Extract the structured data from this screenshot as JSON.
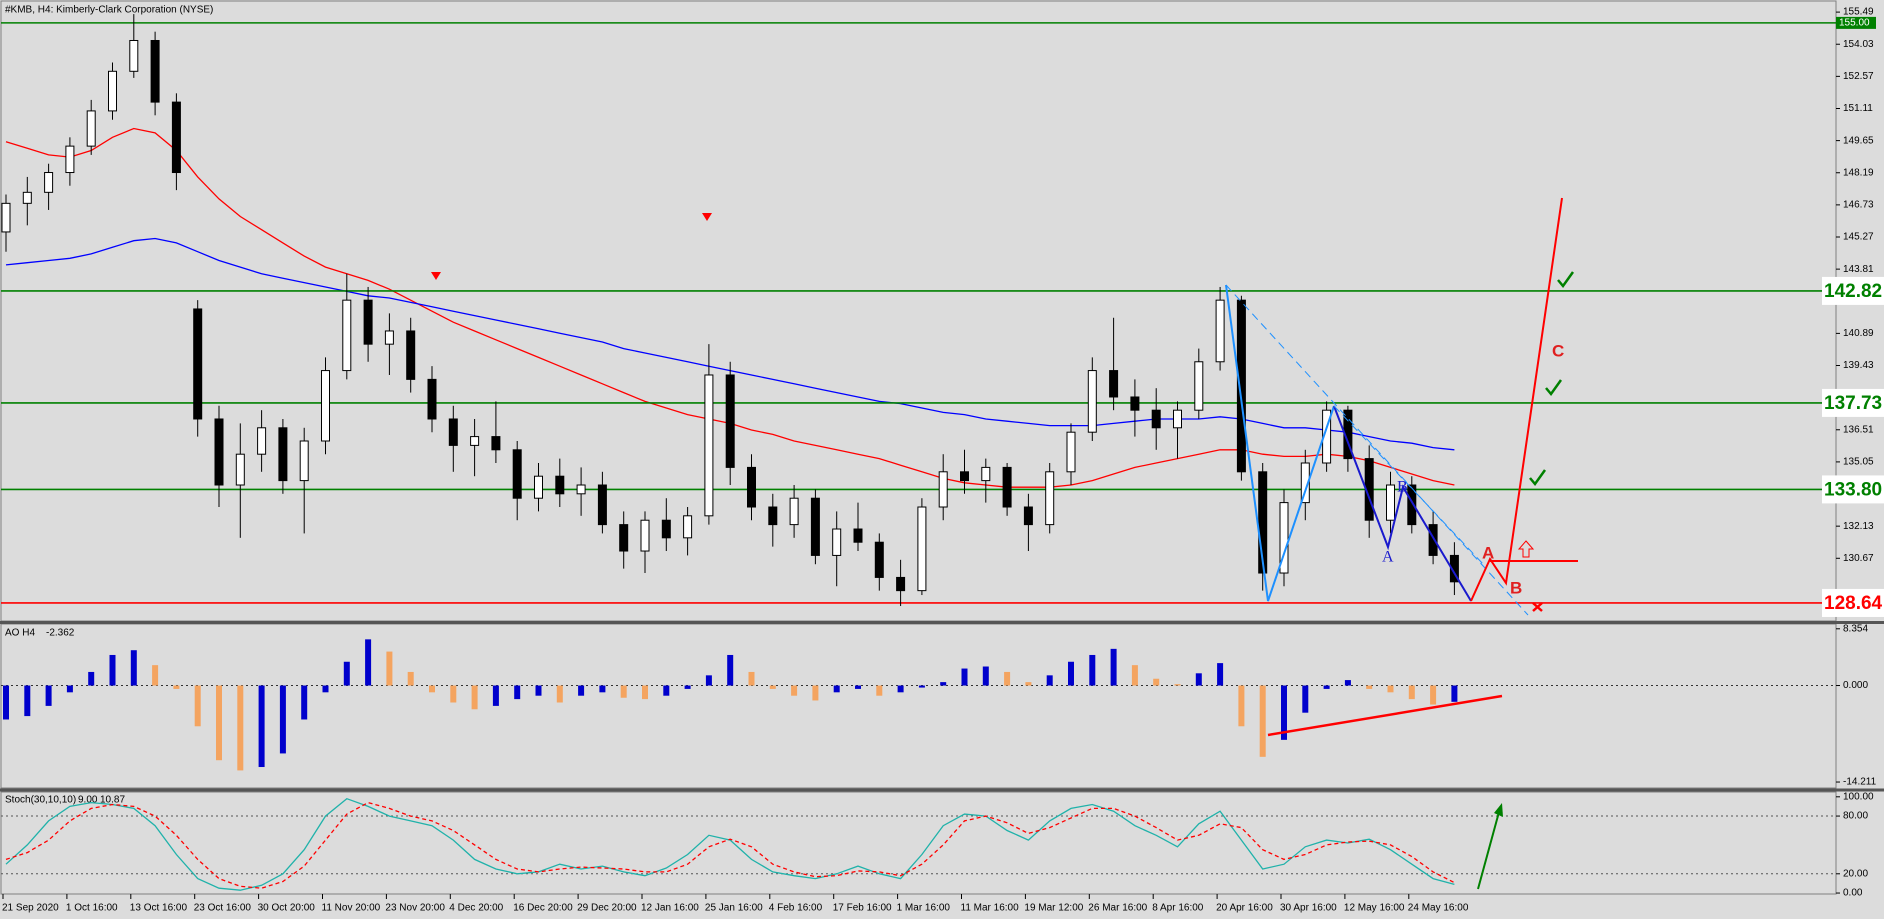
{
  "chart_data": {
    "type": "candlestick",
    "title": "#KMB, H4:  Kimberly-Clark Corporation (NYSE)",
    "ylim": [
      127.82,
      156.04
    ],
    "yticks": [
      155.49,
      154.03,
      152.57,
      151.11,
      149.65,
      148.19,
      146.73,
      145.27,
      143.81,
      140.89,
      139.43,
      136.51,
      135.05,
      132.13,
      130.67
    ],
    "x_labels": [
      "21 Sep 2020",
      "1 Oct 16:00",
      "13 Oct 16:00",
      "23 Oct 16:00",
      "30 Oct 20:00",
      "11 Nov 20:00",
      "23 Nov 20:00",
      "4 Dec 20:00",
      "16 Dec 20:00",
      "29 Dec 20:00",
      "12 Jan 16:00",
      "25 Jan 16:00",
      "4 Feb 16:00",
      "17 Feb 16:00",
      "1 Mar 16:00",
      "11 Mar 16:00",
      "19 Mar 12:00",
      "26 Mar 16:00",
      "8 Apr 16:00",
      "20 Apr 16:00",
      "30 Apr 16:00",
      "12 May 16:00",
      "24 May 16:00"
    ],
    "candles": [
      [
        145.5,
        147.2,
        144.6,
        146.8
      ],
      [
        146.8,
        148.0,
        145.8,
        147.3
      ],
      [
        147.3,
        148.6,
        146.5,
        148.2
      ],
      [
        148.2,
        149.8,
        147.6,
        149.4
      ],
      [
        149.4,
        151.5,
        149.0,
        151.0
      ],
      [
        151.0,
        153.2,
        150.6,
        152.8
      ],
      [
        152.8,
        155.4,
        152.5,
        154.2
      ],
      [
        154.2,
        154.6,
        150.8,
        151.4
      ],
      [
        151.4,
        151.8,
        147.4,
        148.2
      ],
      [
        142.0,
        142.4,
        136.2,
        137.0
      ],
      [
        137.0,
        137.6,
        133.0,
        134.0
      ],
      [
        134.0,
        136.8,
        131.6,
        135.4
      ],
      [
        135.4,
        137.4,
        134.6,
        136.6
      ],
      [
        136.6,
        137.0,
        133.6,
        134.2
      ],
      [
        134.2,
        136.6,
        131.8,
        136.0
      ],
      [
        136.0,
        139.8,
        135.4,
        139.2
      ],
      [
        139.2,
        143.6,
        138.8,
        142.4
      ],
      [
        142.4,
        143.0,
        139.6,
        140.4
      ],
      [
        140.4,
        141.8,
        139.0,
        141.0
      ],
      [
        141.0,
        141.6,
        138.2,
        138.8
      ],
      [
        138.8,
        139.4,
        136.4,
        137.0
      ],
      [
        137.0,
        137.6,
        134.6,
        135.8
      ],
      [
        135.8,
        137.0,
        134.4,
        136.2
      ],
      [
        136.2,
        137.8,
        135.0,
        135.6
      ],
      [
        135.6,
        136.0,
        132.4,
        133.4
      ],
      [
        133.4,
        135.0,
        132.8,
        134.4
      ],
      [
        134.4,
        135.2,
        133.0,
        133.6
      ],
      [
        133.6,
        134.8,
        132.6,
        134.0
      ],
      [
        134.0,
        134.6,
        131.8,
        132.2
      ],
      [
        132.2,
        132.8,
        130.2,
        131.0
      ],
      [
        131.0,
        132.8,
        130.0,
        132.4
      ],
      [
        132.4,
        133.4,
        131.0,
        131.6
      ],
      [
        131.6,
        133.0,
        130.8,
        132.6
      ],
      [
        132.6,
        140.4,
        132.2,
        139.0
      ],
      [
        139.0,
        139.6,
        134.0,
        134.8
      ],
      [
        134.8,
        135.4,
        132.4,
        133.0
      ],
      [
        133.0,
        133.6,
        131.2,
        132.2
      ],
      [
        132.2,
        134.0,
        131.6,
        133.4
      ],
      [
        133.4,
        133.8,
        130.4,
        130.8
      ],
      [
        130.8,
        132.8,
        129.4,
        132.0
      ],
      [
        132.0,
        133.2,
        131.0,
        131.4
      ],
      [
        131.4,
        131.8,
        129.2,
        129.8
      ],
      [
        129.8,
        130.6,
        128.5,
        129.2
      ],
      [
        129.2,
        133.4,
        129.0,
        133.0
      ],
      [
        133.0,
        135.4,
        132.4,
        134.6
      ],
      [
        134.6,
        135.6,
        133.6,
        134.2
      ],
      [
        134.2,
        135.2,
        133.2,
        134.8
      ],
      [
        134.8,
        135.0,
        132.6,
        133.0
      ],
      [
        133.0,
        133.6,
        131.0,
        132.2
      ],
      [
        132.2,
        135.0,
        131.8,
        134.6
      ],
      [
        134.6,
        136.8,
        134.0,
        136.4
      ],
      [
        136.4,
        139.8,
        136.0,
        139.2
      ],
      [
        139.2,
        141.6,
        137.4,
        138.0
      ],
      [
        138.0,
        138.8,
        136.2,
        137.4
      ],
      [
        137.4,
        138.4,
        135.6,
        136.6
      ],
      [
        136.6,
        137.8,
        135.2,
        137.4
      ],
      [
        137.4,
        140.2,
        137.0,
        139.6
      ],
      [
        139.6,
        143.0,
        139.2,
        142.4
      ],
      [
        142.4,
        142.6,
        134.2,
        134.6
      ],
      [
        134.6,
        135.0,
        129.2,
        130.0
      ],
      [
        130.0,
        133.8,
        129.4,
        133.2
      ],
      [
        133.2,
        135.6,
        132.4,
        135.0
      ],
      [
        135.0,
        137.8,
        134.6,
        137.4
      ],
      [
        137.4,
        137.6,
        134.6,
        135.2
      ],
      [
        135.2,
        135.8,
        131.6,
        132.4
      ],
      [
        132.4,
        134.6,
        131.8,
        134.0
      ],
      [
        134.0,
        134.4,
        131.8,
        132.2
      ],
      [
        132.2,
        132.8,
        130.4,
        130.8
      ],
      [
        130.8,
        131.4,
        129.0,
        129.6
      ]
    ],
    "candle_up_color": "#ffffff",
    "candle_down_color": "#000000",
    "series": [
      {
        "color": "#ff0000",
        "values": [
          149.6,
          149.3,
          149.0,
          148.9,
          149.2,
          149.8,
          150.2,
          150.0,
          149.2,
          148.0,
          147.0,
          146.2,
          145.6,
          145.0,
          144.4,
          143.9,
          143.6,
          143.3,
          142.9,
          142.4,
          141.9,
          141.4,
          141.0,
          140.6,
          140.2,
          139.8,
          139.4,
          139.0,
          138.6,
          138.2,
          137.8,
          137.5,
          137.2,
          137.0,
          136.8,
          136.5,
          136.3,
          136.0,
          135.8,
          135.6,
          135.4,
          135.2,
          134.9,
          134.6,
          134.3,
          134.1,
          134.0,
          133.9,
          133.9,
          133.9,
          134.0,
          134.2,
          134.5,
          134.8,
          135.0,
          135.2,
          135.4,
          135.6,
          135.6,
          135.4,
          135.3,
          135.3,
          135.4,
          135.3,
          135.1,
          134.8,
          134.5,
          134.2,
          134.0
        ]
      },
      {
        "color": "#0000ff",
        "values": [
          144.0,
          144.1,
          144.2,
          144.3,
          144.5,
          144.8,
          145.1,
          145.2,
          145.0,
          144.6,
          144.2,
          143.9,
          143.6,
          143.4,
          143.2,
          143.0,
          142.8,
          142.6,
          142.5,
          142.3,
          142.1,
          141.9,
          141.7,
          141.5,
          141.3,
          141.1,
          140.9,
          140.7,
          140.5,
          140.2,
          140.0,
          139.8,
          139.6,
          139.4,
          139.2,
          139.0,
          138.8,
          138.6,
          138.4,
          138.2,
          138.0,
          137.8,
          137.7,
          137.5,
          137.3,
          137.2,
          137.0,
          136.9,
          136.8,
          136.7,
          136.7,
          136.7,
          136.8,
          136.9,
          137.0,
          137.0,
          137.0,
          137.1,
          137.0,
          136.8,
          136.6,
          136.6,
          136.5,
          136.4,
          136.2,
          136.0,
          135.9,
          135.7,
          135.6
        ]
      }
    ],
    "levels": [
      {
        "value": 155,
        "label": "155.00",
        "color": "#008000",
        "label_style": "small"
      },
      {
        "value": 142.82,
        "color": "#008000",
        "label_style": "large"
      },
      {
        "value": 137.73,
        "color": "#008000",
        "label_style": "large"
      },
      {
        "value": 133.8,
        "label": "133.80",
        "color": "#008000",
        "label_style": "large"
      },
      {
        "value": 128.64,
        "color": "#ff0000",
        "label_style": "large"
      }
    ],
    "annotations": {
      "wave_red": [
        "A",
        "B",
        "C"
      ],
      "wave_blue": [
        "A",
        "B"
      ]
    },
    "ao": {
      "label": "AO H4",
      "current": -2.362,
      "ylim": [
        -15.09,
        9.06
      ],
      "yticks": [
        8.354,
        {
          "value": 0,
          "label": "0.000"
        },
        -14.211
      ],
      "up_color": "#0000cc",
      "down_color": "#f4a460",
      "values": [
        -5,
        -4.5,
        -3,
        -1,
        2,
        4.5,
        5.2,
        3,
        -0.5,
        -6,
        -11,
        -12.5,
        -12,
        -10,
        -5,
        -1,
        3.5,
        6.8,
        5,
        2,
        -1,
        -2.5,
        -3.5,
        -3,
        -2,
        -1.5,
        -2.5,
        -1.5,
        -1,
        -1.8,
        -2,
        -1.5,
        -0.5,
        1.5,
        4.5,
        2,
        -0.5,
        -1.5,
        -2.2,
        -1,
        -0.5,
        -1.5,
        -1,
        -0.3,
        0.5,
        2.5,
        2.8,
        2,
        0.5,
        1.5,
        3.5,
        4.5,
        5.4,
        3,
        1,
        0.2,
        1.8,
        3.3,
        -6,
        -10.5,
        -8,
        -4,
        -0.5,
        0.8,
        -0.5,
        -1,
        -2,
        -2.8,
        -2.4
      ]
    },
    "stoch": {
      "label": "Stoch(30,10,10)",
      "readout": [
        {
          "value": 9,
          "label": "9.00"
        },
        10.87
      ],
      "ylim": [
        -1,
        105
      ],
      "yticks": [
        {
          "value": 100,
          "label": "100.00"
        },
        {
          "value": 80,
          "label": "80.00"
        },
        {
          "value": 20,
          "label": "20.00"
        },
        {
          "value": 0,
          "label": "0.00"
        }
      ],
      "k_color": "#20b2aa",
      "d_color": "#ff0000",
      "k": [
        30,
        50,
        75,
        90,
        94,
        92,
        88,
        70,
        40,
        15,
        5,
        3,
        8,
        20,
        45,
        80,
        98,
        90,
        80,
        75,
        70,
        55,
        35,
        25,
        20,
        22,
        30,
        25,
        28,
        22,
        18,
        26,
        40,
        60,
        55,
        35,
        22,
        18,
        15,
        20,
        28,
        20,
        15,
        40,
        70,
        82,
        80,
        65,
        55,
        75,
        88,
        92,
        85,
        70,
        60,
        48,
        72,
        85,
        55,
        25,
        30,
        48,
        55,
        52,
        56,
        45,
        30,
        15,
        9
      ],
      "d": [
        35,
        42,
        55,
        75,
        88,
        92,
        90,
        80,
        60,
        35,
        15,
        7,
        5,
        12,
        28,
        55,
        82,
        94,
        88,
        80,
        75,
        65,
        50,
        35,
        25,
        22,
        25,
        27,
        26,
        25,
        22,
        22,
        30,
        48,
        56,
        48,
        30,
        22,
        17,
        18,
        23,
        22,
        18,
        30,
        50,
        75,
        80,
        73,
        62,
        68,
        78,
        88,
        88,
        80,
        68,
        55,
        60,
        72,
        68,
        45,
        35,
        40,
        50,
        53,
        54,
        50,
        38,
        22,
        10.87
      ]
    }
  }
}
